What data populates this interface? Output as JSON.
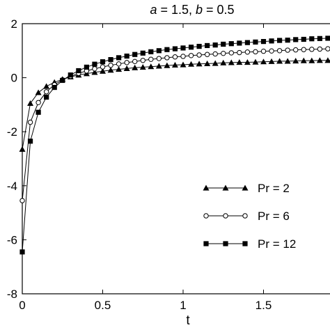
{
  "chart_data": {
    "type": "line",
    "title_prefix_a": "a",
    "title_middle": " = 1.5, ",
    "title_prefix_b": "b",
    "title_suffix": " = 0.5",
    "xlabel": "t",
    "ylabel": "",
    "xlim": [
      0,
      2
    ],
    "ylim": [
      -8,
      2
    ],
    "xticks": [
      0,
      0.5,
      1,
      1.5
    ],
    "xtick_labels": [
      "0",
      "0.5",
      "1",
      "1.5"
    ],
    "yticks": [
      -8,
      -6,
      -4,
      -2,
      0,
      2
    ],
    "ytick_labels": [
      "-8",
      "-6",
      "-4",
      "-2",
      "0",
      "2"
    ],
    "grid": false,
    "legend_position": "lower-right",
    "x": [
      0,
      0.05,
      0.1,
      0.15,
      0.2,
      0.25,
      0.3,
      0.35,
      0.4,
      0.45,
      0.5,
      0.55,
      0.6,
      0.65,
      0.7,
      0.75,
      0.8,
      0.85,
      0.9,
      0.95,
      1.0,
      1.05,
      1.1,
      1.15,
      1.2,
      1.25,
      1.3,
      1.35,
      1.4,
      1.45,
      1.5,
      1.55,
      1.6,
      1.65,
      1.7,
      1.75,
      1.8,
      1.85,
      1.9,
      1.95
    ],
    "series": [
      {
        "name": "Pr = 2",
        "marker": "triangle",
        "values": [
          -2.65,
          -0.95,
          -0.55,
          -0.32,
          -0.17,
          -0.06,
          0.03,
          0.1,
          0.15,
          0.2,
          0.24,
          0.28,
          0.31,
          0.34,
          0.37,
          0.39,
          0.41,
          0.43,
          0.45,
          0.47,
          0.48,
          0.5,
          0.51,
          0.52,
          0.53,
          0.55,
          0.56,
          0.57,
          0.57,
          0.58,
          0.59,
          0.6,
          0.61,
          0.61,
          0.62,
          0.63,
          0.63,
          0.64,
          0.64,
          0.65
        ]
      },
      {
        "name": "Pr = 6",
        "marker": "circle",
        "values": [
          -4.55,
          -1.65,
          -0.92,
          -0.52,
          -0.26,
          -0.08,
          0.05,
          0.16,
          0.25,
          0.33,
          0.4,
          0.46,
          0.51,
          0.56,
          0.6,
          0.64,
          0.68,
          0.71,
          0.74,
          0.77,
          0.79,
          0.82,
          0.84,
          0.86,
          0.88,
          0.9,
          0.92,
          0.93,
          0.95,
          0.96,
          0.98,
          0.99,
          1.0,
          1.02,
          1.03,
          1.04,
          1.05,
          1.06,
          1.07,
          1.08
        ]
      },
      {
        "name": "Pr = 12",
        "marker": "square",
        "values": [
          -6.45,
          -2.35,
          -1.28,
          -0.72,
          -0.36,
          -0.1,
          0.1,
          0.26,
          0.39,
          0.5,
          0.59,
          0.67,
          0.74,
          0.8,
          0.86,
          0.91,
          0.96,
          1.0,
          1.04,
          1.07,
          1.1,
          1.13,
          1.16,
          1.19,
          1.21,
          1.24,
          1.26,
          1.28,
          1.3,
          1.32,
          1.34,
          1.36,
          1.38,
          1.39,
          1.41,
          1.42,
          1.44,
          1.45,
          1.46,
          1.48
        ]
      }
    ]
  }
}
